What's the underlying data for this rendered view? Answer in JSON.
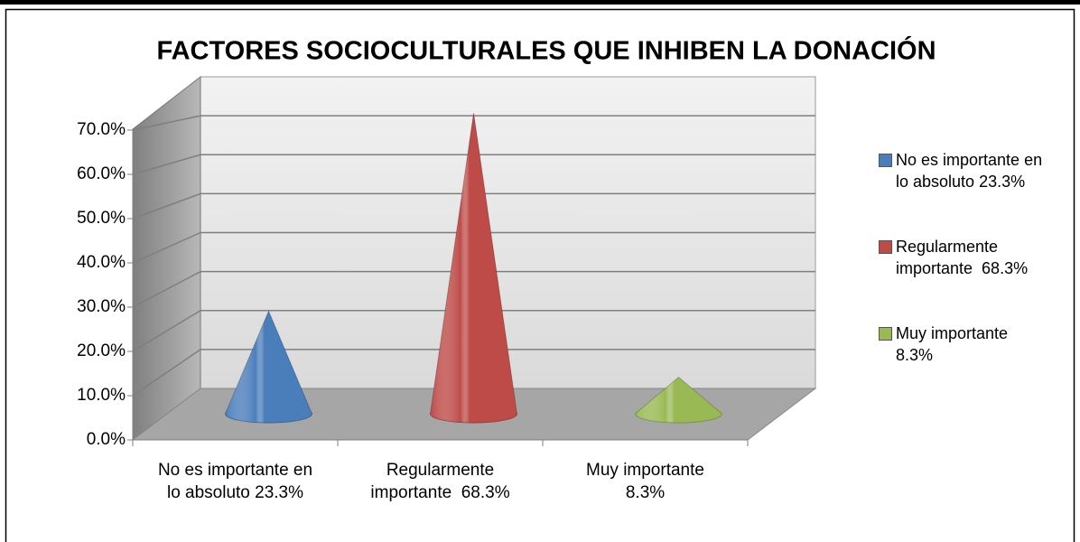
{
  "chart_data": {
    "type": "cone",
    "title": "FACTORES SOCIOCULTURALES QUE INHIBEN LA DONACIÓN",
    "categories": [
      "No es importante en lo absoluto 23.3%",
      "Regularmente importante  68.3%",
      "Muy importante 8.3%"
    ],
    "values": [
      23.3,
      68.3,
      8.3
    ],
    "colors": [
      "#4a7ebb",
      "#be4b48",
      "#98b954"
    ],
    "ylim": [
      0,
      80
    ],
    "yticks": [
      {
        "value": 0,
        "label": "0.0%"
      },
      {
        "value": 10,
        "label": "10.0%"
      },
      {
        "value": 20,
        "label": "20.0%"
      },
      {
        "value": 30,
        "label": "30.0%"
      },
      {
        "value": 40,
        "label": "40.0%"
      },
      {
        "value": 50,
        "label": "50.0%"
      },
      {
        "value": 60,
        "label": "60.0%"
      },
      {
        "value": 70,
        "label": "70.0%"
      }
    ],
    "grid": true,
    "legend": "right"
  }
}
